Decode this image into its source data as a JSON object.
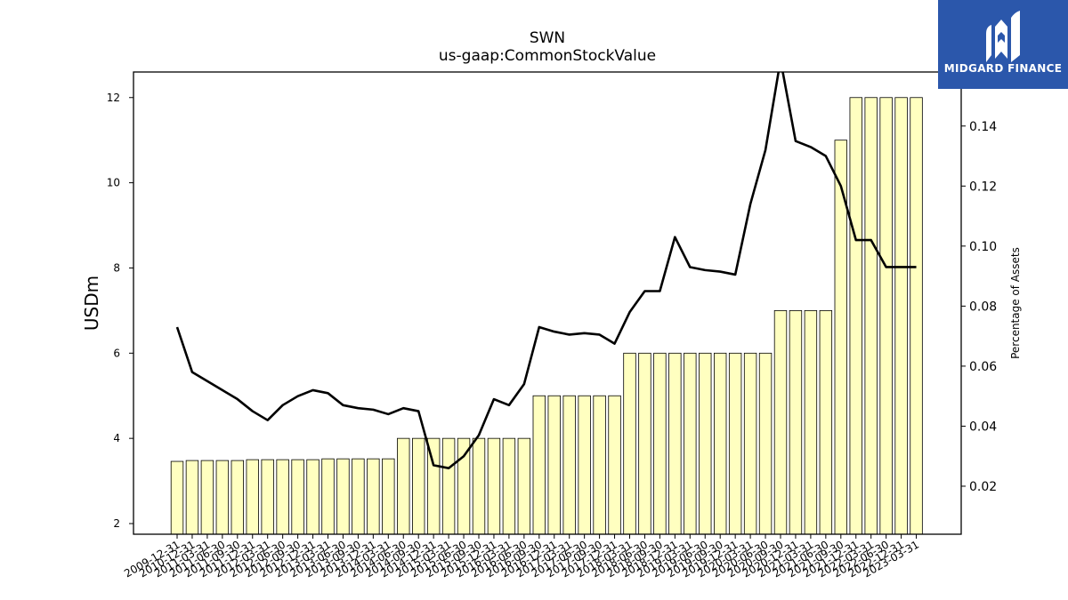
{
  "brand": {
    "name": "MIDGARD FINANCE",
    "bg_color": "#2b57ab"
  },
  "chart_data": {
    "type": "bar",
    "title": "SWN",
    "subtitle": "us-gaap:CommonStockValue",
    "ylabel": "USDm",
    "y2label": "Percentage of Assets",
    "ylim": [
      1.75,
      12.6
    ],
    "y2lim": [
      0.004,
      0.158
    ],
    "yticks": [
      2,
      4,
      6,
      8,
      10,
      12
    ],
    "y2ticks": [
      0.02,
      0.04,
      0.06,
      0.08,
      0.1,
      0.12,
      0.14
    ],
    "y2ticklabels": [
      "0.02",
      "0.04",
      "0.06",
      "0.08",
      "0.10",
      "0.12",
      "0.14"
    ],
    "bar_color": "#ffffc0",
    "line_color": "#000000",
    "x_tick_labels": [
      "2009-12-31",
      "2010-12-31",
      "2011-03-31",
      "2011-06-30",
      "2011-09-30",
      "2011-12-31",
      "2012-03-31",
      "2012-06-30",
      "2012-09-30",
      "2012-12-31",
      "2013-03-31",
      "2013-06-30",
      "2013-09-30",
      "2013-12-31",
      "2014-03-31",
      "2014-06-30",
      "2014-09-30",
      "2014-12-31",
      "2015-03-31",
      "2015-06-30",
      "2015-09-30",
      "2015-12-31",
      "2016-03-31",
      "2016-06-30",
      "2016-09-30",
      "2016-12-31",
      "2017-03-31",
      "2017-06-30",
      "2017-09-30",
      "2017-12-31",
      "2018-03-31",
      "2018-06-30",
      "2018-09-30",
      "2018-12-31",
      "2019-03-31",
      "2019-06-30",
      "2019-09-30",
      "2019-12-31",
      "2020-03-31",
      "2020-06-30",
      "2020-09-30",
      "2020-12-31",
      "2021-03-31",
      "2021-06-30",
      "2021-09-30",
      "2021-12-31",
      "2022-03-31",
      "2022-06-30",
      "2022-12-31",
      "2023-03-31"
    ],
    "values": [
      3.46,
      3.48,
      3.48,
      3.48,
      3.48,
      3.5,
      3.5,
      3.5,
      3.5,
      3.5,
      3.52,
      3.52,
      3.52,
      3.52,
      3.52,
      4.0,
      4.0,
      4.0,
      4.0,
      4.0,
      4.0,
      4.0,
      4.0,
      4.0,
      5.0,
      5.0,
      5.0,
      5.0,
      5.0,
      5.0,
      6.0,
      6.0,
      6.0,
      6.0,
      6.0,
      6.0,
      6.0,
      6.0,
      6.0,
      6.0,
      7.0,
      7.0,
      7.0,
      7.0,
      11.0,
      12.0,
      12.0,
      12.0,
      12.0,
      12.0
    ],
    "pct_assets": [
      0.073,
      0.058,
      0.055,
      0.052,
      0.049,
      0.045,
      0.042,
      0.047,
      0.05,
      0.052,
      0.051,
      0.047,
      0.046,
      0.0455,
      0.044,
      0.046,
      0.045,
      0.027,
      0.026,
      0.03,
      0.037,
      0.049,
      0.047,
      0.054,
      0.073,
      0.0715,
      0.0705,
      0.071,
      0.0705,
      0.0675,
      0.078,
      0.085,
      0.085,
      0.103,
      0.093,
      0.092,
      0.0915,
      0.0905,
      0.114,
      0.132,
      0.162,
      0.135,
      0.133,
      0.13,
      0.12,
      0.102,
      0.102,
      0.093,
      0.093,
      0.093
    ]
  }
}
